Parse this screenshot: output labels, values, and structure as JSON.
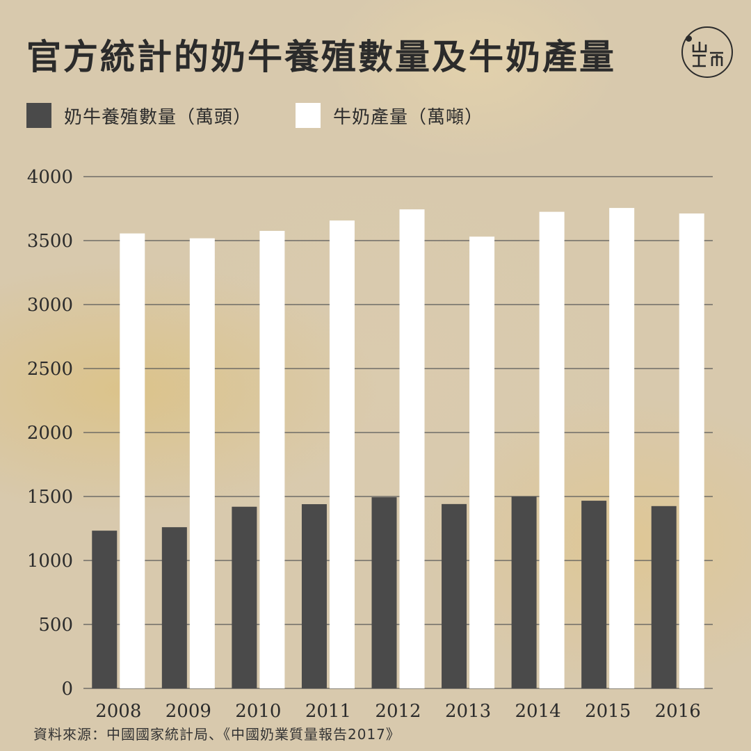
{
  "title": "官方統計的奶牛養殖數量及牛奶產量",
  "source": "資料來源：中國國家統計局、《中國奶業質量報告2017》",
  "colors": {
    "cows": "#4a4a4a",
    "milk": "#ffffff",
    "grid": "#5a5a5a",
    "text": "#2b2b2b"
  },
  "chart_data": {
    "type": "bar",
    "categories": [
      "2008",
      "2009",
      "2010",
      "2011",
      "2012",
      "2013",
      "2014",
      "2015",
      "2016"
    ],
    "series": [
      {
        "name": "奶牛養殖數量（萬頭）",
        "values": [
          1233,
          1260,
          1420,
          1440,
          1494,
          1441,
          1499,
          1467,
          1425
        ]
      },
      {
        "name": "牛奶產量（萬噸）",
        "values": [
          3556,
          3518,
          3576,
          3657,
          3744,
          3531,
          3725,
          3755,
          3712
        ]
      }
    ],
    "yticks": [
      "0",
      "500",
      "1000",
      "1500",
      "2000",
      "2500",
      "3000",
      "3500",
      "4000"
    ],
    "ylim": [
      0,
      4000
    ],
    "grid": true,
    "legend": "top-left"
  }
}
